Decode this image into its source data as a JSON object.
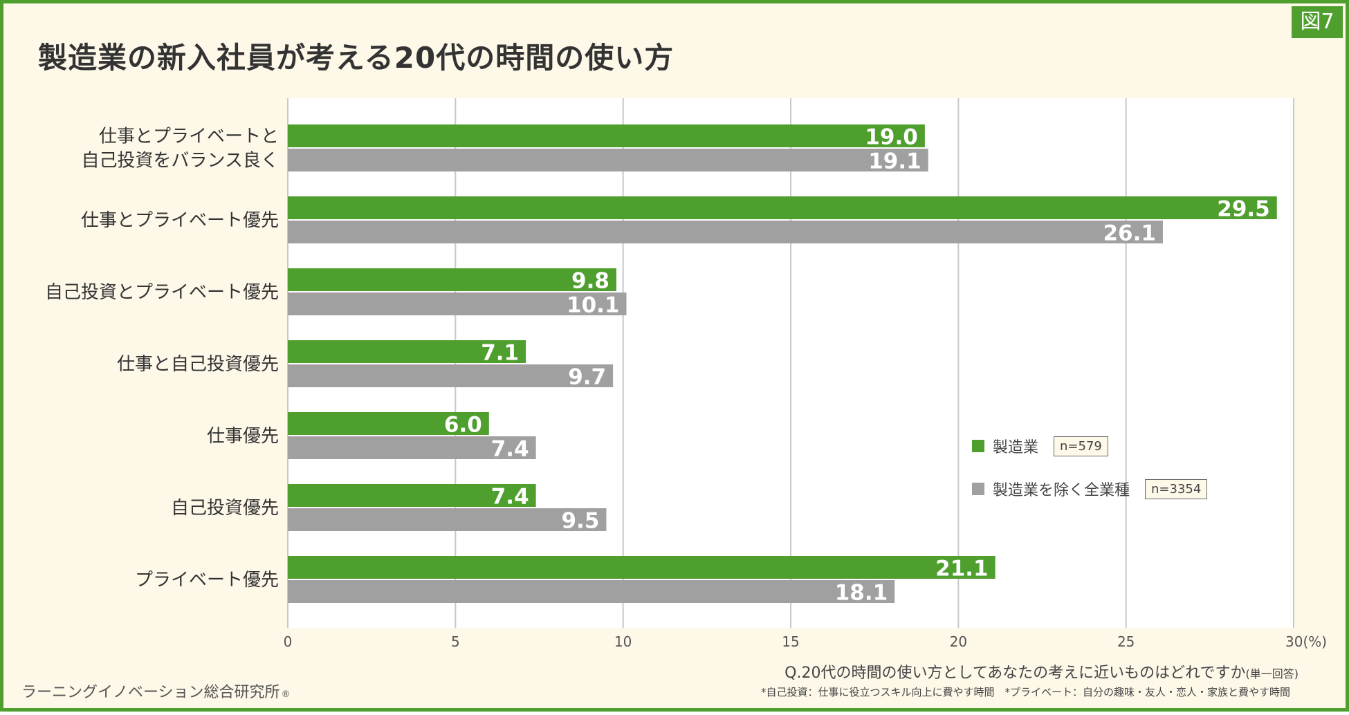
{
  "figure_badge": "図7",
  "chart_data": {
    "type": "bar",
    "orientation": "horizontal",
    "title": "製造業の新入社員が考える20代の時間の使い方",
    "categories": [
      "仕事とプライベートと\n自己投資をバランス良く",
      "仕事とプライベート優先",
      "自己投資とプライベート優先",
      "仕事と自己投資優先",
      "仕事優先",
      "自己投資優先",
      "プライベート優先"
    ],
    "series": [
      {
        "name": "製造業",
        "n": "n=579",
        "color": "#4f9f2f",
        "values": [
          19.0,
          29.5,
          9.8,
          7.1,
          6.0,
          7.4,
          21.1
        ],
        "labels": [
          "19.0",
          "29.5",
          "9.8",
          "7.1",
          "6.0",
          "7.4",
          "21.1"
        ]
      },
      {
        "name": "製造業を除く全業種",
        "n": "n=3354",
        "color": "#a0a0a0",
        "values": [
          19.1,
          26.1,
          10.1,
          9.7,
          7.4,
          9.5,
          18.1
        ],
        "labels": [
          "19.1",
          "26.1",
          "10.1",
          "9.7",
          "7.4",
          "9.5",
          "18.1"
        ]
      }
    ],
    "xlim": [
      0,
      30
    ],
    "xticks": [
      "0",
      "5",
      "10",
      "15",
      "20",
      "25",
      "30(%)"
    ],
    "xlabel": "(%)",
    "grid": true,
    "legend_position": "lower-right"
  },
  "question": "Q.20代の時間の使い方としてあなたの考えに近いものはどれですか",
  "question_note": "(単一回答)",
  "footnote": "*自己投資：仕事に役立つスキル向上に費やす時間　*プライベート：自分の趣味・友人・恋人・家族と費やす時間",
  "source": "ラーニングイノベーション総合研究所",
  "source_mark": "®"
}
